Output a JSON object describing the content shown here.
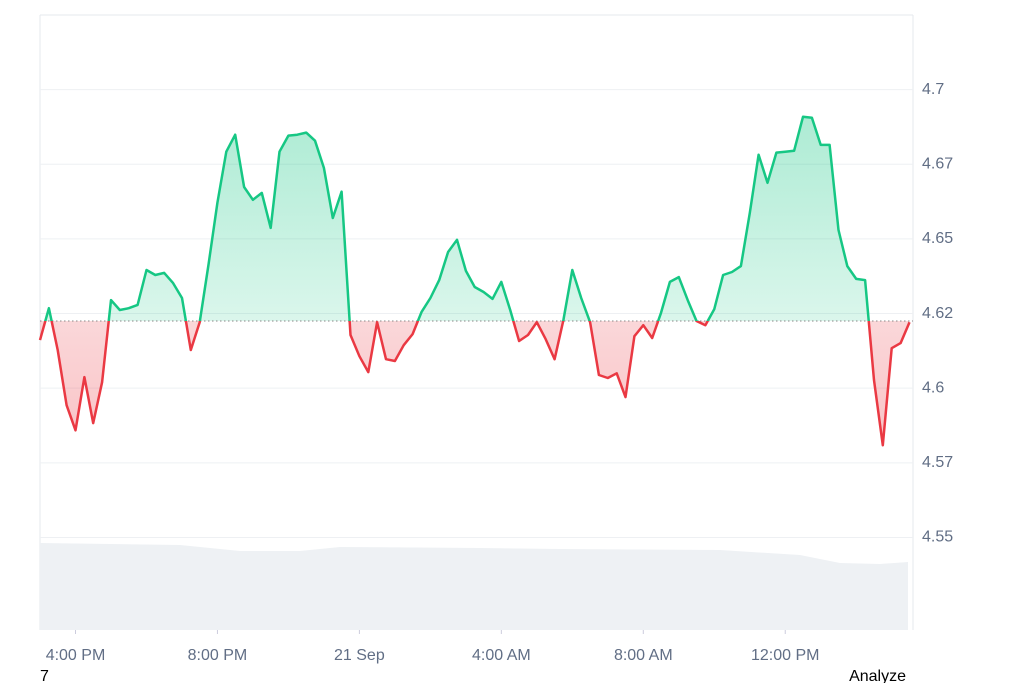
{
  "chart_data": {
    "type": "baseline",
    "x": [
      15,
      15.25,
      15.5,
      15.75,
      16,
      16.25,
      16.5,
      16.75,
      17,
      17.25,
      17.5,
      17.75,
      18,
      18.25,
      18.5,
      18.75,
      19,
      19.25,
      19.5,
      19.75,
      20,
      20.25,
      20.5,
      20.75,
      21,
      21.25,
      21.5,
      21.75,
      22,
      22.25,
      22.5,
      22.75,
      23,
      23.25,
      23.5,
      23.75,
      24,
      24.25,
      24.5,
      24.75,
      25,
      25.25,
      25.5,
      25.75,
      26,
      26.25,
      26.5,
      26.75,
      27,
      27.25,
      27.5,
      27.75,
      28,
      28.25,
      28.5,
      28.75,
      29,
      29.25,
      29.5,
      29.75,
      30,
      30.25,
      30.5,
      30.75,
      31,
      31.25,
      31.5,
      31.75,
      32,
      32.25,
      32.5,
      32.75,
      33,
      33.25,
      33.5,
      33.75,
      34,
      34.25,
      34.5,
      34.75,
      35,
      35.25,
      35.5,
      35.75,
      36,
      36.25,
      36.5,
      36.75,
      37,
      37.25,
      37.5,
      37.75,
      38,
      38.25,
      38.5,
      38.75,
      39,
      39.25,
      39.5
    ],
    "values": [
      4.6161,
      4.6268,
      4.6128,
      4.5943,
      4.5859,
      4.6037,
      4.5883,
      4.602,
      4.6295,
      4.6262,
      4.6268,
      4.6279,
      4.6396,
      4.6379,
      4.6386,
      4.6352,
      4.6302,
      4.6128,
      4.6221,
      4.6416,
      4.6621,
      4.6792,
      4.6849,
      4.6674,
      4.6631,
      4.6654,
      4.6537,
      4.6792,
      4.6846,
      4.6849,
      4.6856,
      4.6829,
      4.6738,
      4.657,
      4.6658,
      4.6178,
      4.6107,
      4.6054,
      4.6221,
      4.6097,
      4.6091,
      4.6144,
      4.6181,
      4.6255,
      4.6302,
      4.6362,
      4.6456,
      4.6497,
      4.6393,
      4.6339,
      4.6322,
      4.6299,
      4.6356,
      4.6262,
      4.6158,
      4.6178,
      4.6221,
      4.6164,
      4.6097,
      4.6228,
      4.6396,
      4.6302,
      4.6221,
      4.6044,
      4.6034,
      4.605,
      4.597,
      4.6174,
      4.6211,
      4.6168,
      4.6252,
      4.6356,
      4.6372,
      4.6295,
      4.6225,
      4.6211,
      4.6265,
      4.6379,
      4.6389,
      4.6409,
      4.6587,
      4.6782,
      4.6688,
      4.6789,
      4.6792,
      4.6795,
      4.6909,
      4.6906,
      4.6815,
      4.6815,
      4.653,
      4.6409,
      4.6366,
      4.6362,
      4.6027,
      4.5809,
      4.6134,
      4.6151,
      4.6221
    ],
    "baseline": 4.6225,
    "up_color": "#16c784",
    "down_color": "#ea3943",
    "xlim": [
      15,
      39.6
    ],
    "xticks": [
      {
        "value": 16,
        "label": "4:00 PM"
      },
      {
        "value": 20,
        "label": "8:00 PM"
      },
      {
        "value": 24,
        "label": "21 Sep"
      },
      {
        "value": 28,
        "label": "4:00 AM"
      },
      {
        "value": 32,
        "label": "8:00 AM"
      },
      {
        "value": 36,
        "label": "12:00 PM"
      }
    ],
    "ylim": [
      4.519,
      4.725
    ],
    "yticks": [
      4.55,
      {
        "value": 4.575,
        "label": "4.57"
      },
      4.6,
      {
        "value": 4.625,
        "label": "4.62"
      },
      4.65,
      {
        "value": 4.675,
        "label": "4.67"
      },
      4.7
    ],
    "grid": true,
    "footer_left": "7",
    "footer_right": "Analyze"
  }
}
